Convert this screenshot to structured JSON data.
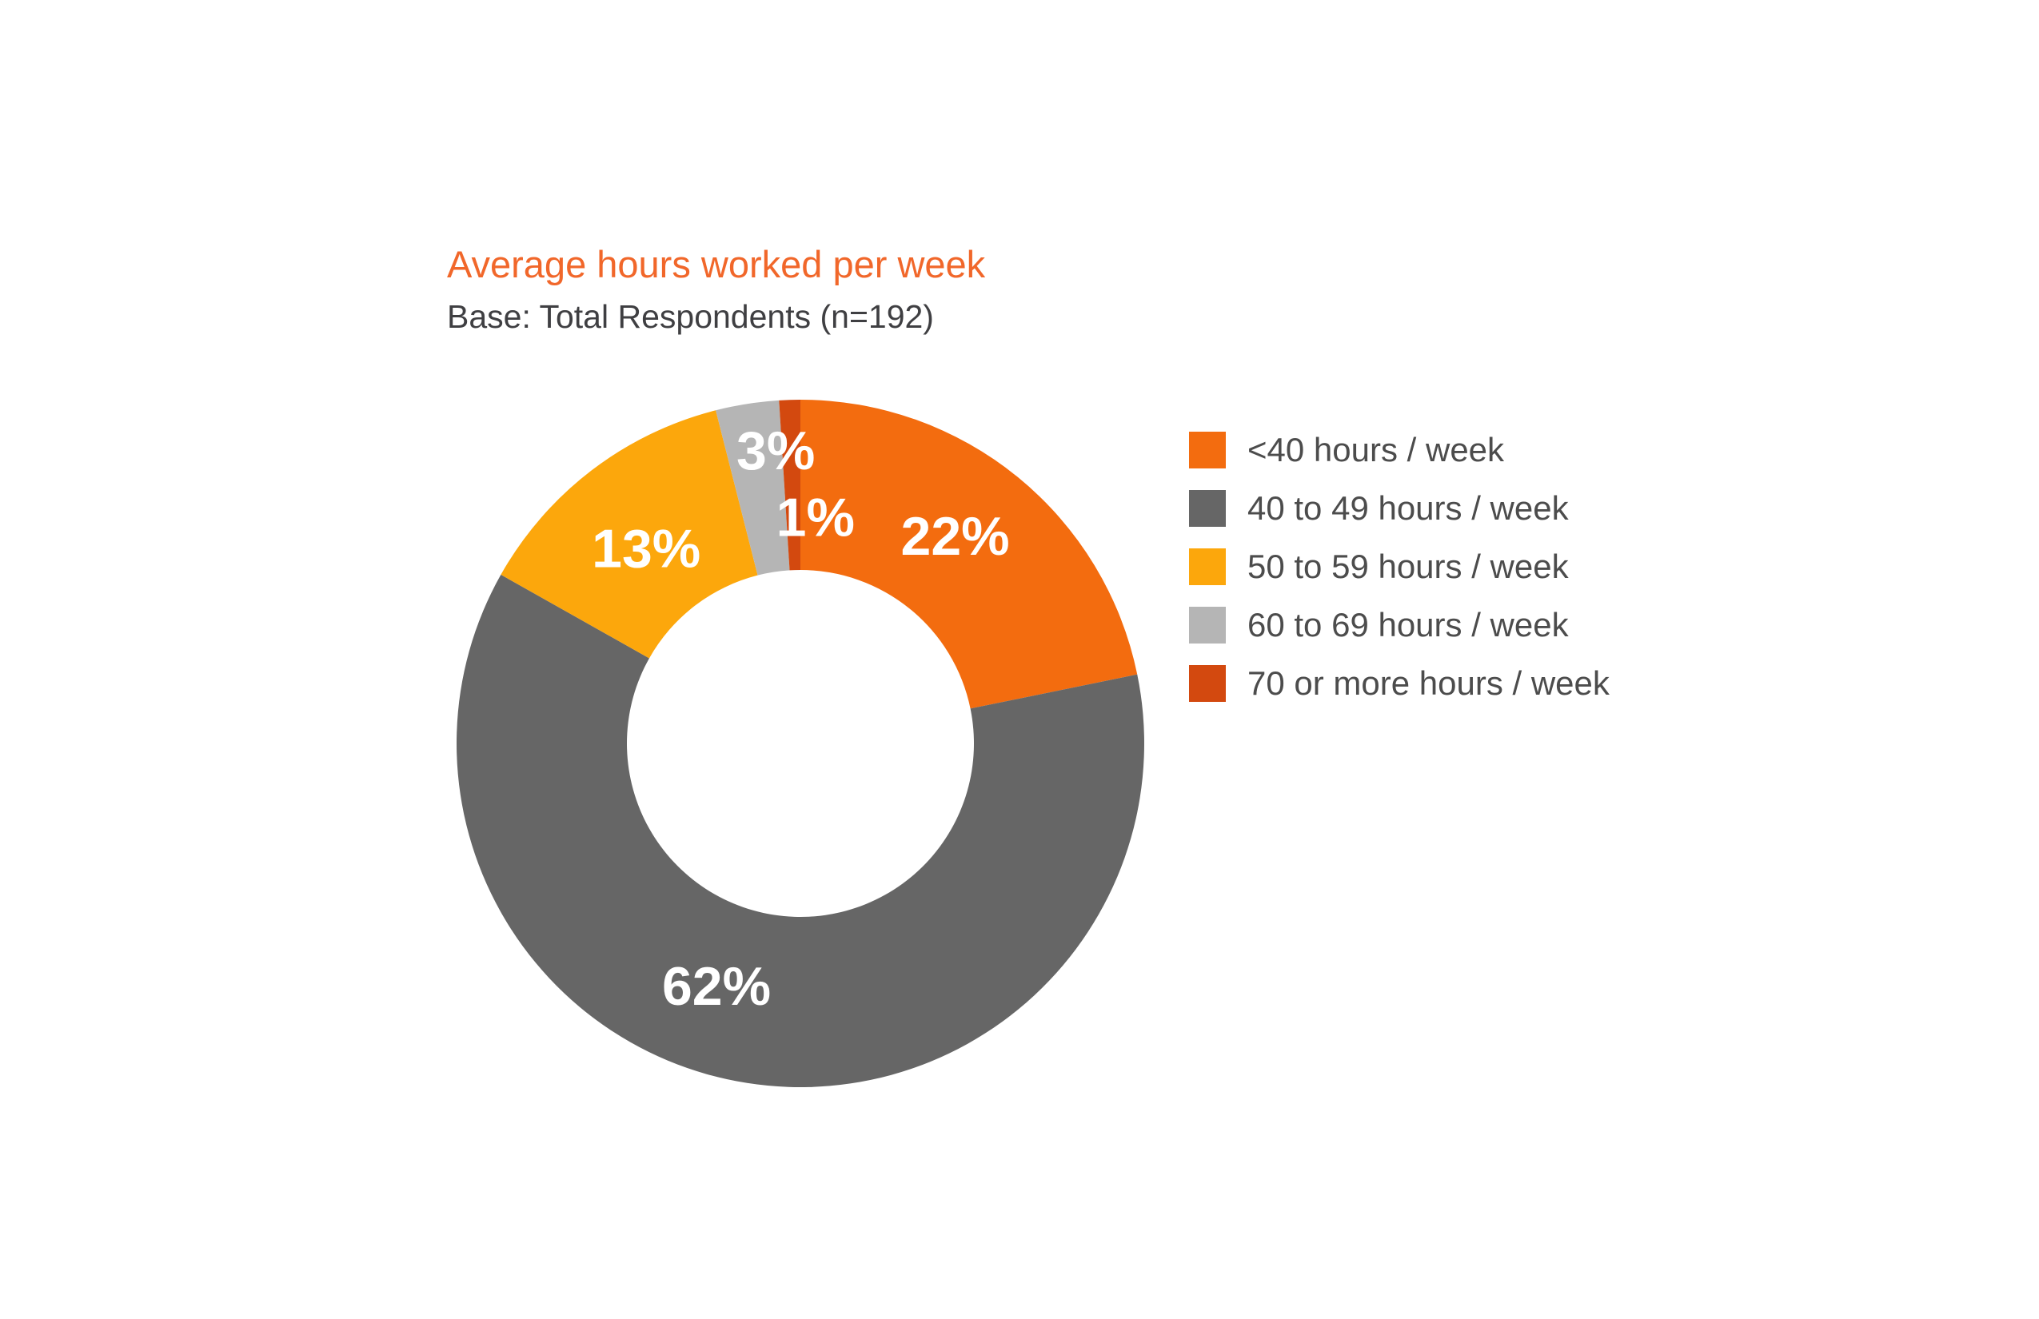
{
  "header": {
    "title": "Average hours worked per week",
    "subtitle": "Base: Total Respondents (n=192)"
  },
  "colors": {
    "title_accent": "#F1672A",
    "subtitle_text": "#3F3F42",
    "legend_text": "#4C4C4C",
    "data_label_text": "#FFFFFF",
    "background": "#FFFFFF"
  },
  "chart_data": {
    "type": "pie",
    "subtype": "donut",
    "title": "Average hours worked per week",
    "base_note": "Base: Total Respondents (n=192)",
    "categories": [
      "<40 hours / week",
      "40 to 49 hours / week",
      "50 to 59 hours / week",
      "60 to 69 hours / week",
      "70 or more hours / week"
    ],
    "values": [
      22,
      62,
      13,
      3,
      1
    ],
    "unit": "%",
    "data_labels": [
      "22%",
      "62%",
      "13%",
      "3%",
      "1%"
    ],
    "colors": [
      "#F36C0F",
      "#666666",
      "#FCA70C",
      "#B5B5B5",
      "#D3490F"
    ],
    "start_angle_deg": 0,
    "direction": "clockwise",
    "legend_position": "right",
    "grid": false
  }
}
